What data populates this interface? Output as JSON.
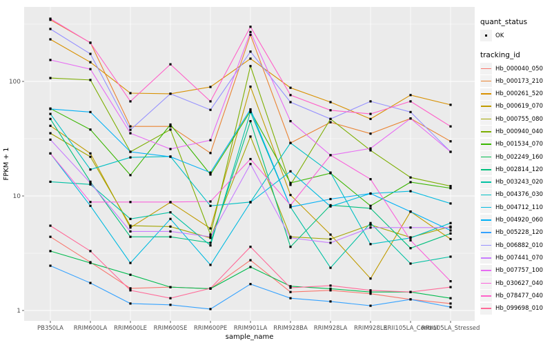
{
  "axes": {
    "x_title": "sample_name",
    "y_title": "FPKM + 1",
    "y_tick_labels": [
      "100",
      "10",
      "1"
    ],
    "y_tick_values": [
      100,
      10,
      1
    ],
    "y_minor_values": [
      316.2,
      31.62,
      3.162
    ]
  },
  "legend": {
    "quant_status_title": "quant_status",
    "quant_status_items": [
      {
        "label": "OK"
      }
    ],
    "tracking_title": "tracking_id"
  },
  "colors": {
    "panel_background": "#EBEBEB",
    "gridline": "#FFFFFF",
    "point": "#000000",
    "tick": "#333333",
    "tick_text": "#4D4D4D",
    "legend_key_background": "#F2F2F2"
  },
  "chart_data": {
    "type": "line",
    "yscale": "log10",
    "ylim": [
      0.81,
      450
    ],
    "grid": "on",
    "legend_position": "right",
    "xlabel": "sample_name",
    "ylabel": "FPKM + 1",
    "categories": [
      "PB350LA",
      "RRIM600LA",
      "RRIM600LE",
      "RRIM600SE",
      "RRIM600PE",
      "RRIM901LA",
      "RRIM928BA",
      "RRIM928LA",
      "RRIM928LE",
      "RRII105LA_Control",
      "RRII105LA_Stressed"
    ],
    "series": [
      {
        "name": "Hb_000040_050",
        "color": "#F8766D",
        "values": [
          4.4,
          2.64,
          1.56,
          1.6,
          1.55,
          2.75,
          1.45,
          1.5,
          1.4,
          1.25,
          1.15
        ]
      },
      {
        "name": "Hb_000173_210",
        "color": "#EA8331",
        "values": [
          345,
          218,
          40.5,
          40.5,
          23.7,
          255,
          29,
          44,
          35,
          47.5,
          30
        ]
      },
      {
        "name": "Hb_000261_520",
        "color": "#D89000",
        "values": [
          233,
          147,
          79,
          78,
          89.5,
          158,
          88,
          66,
          47,
          76,
          62.5
        ]
      },
      {
        "name": "Hb_000619_070",
        "color": "#C09B00",
        "values": [
          41,
          23.5,
          5.3,
          8.8,
          5.2,
          90,
          10.2,
          4.6,
          1.9,
          7.3,
          4.2
        ]
      },
      {
        "name": "Hb_000755_080",
        "color": "#A3A500",
        "values": [
          35.3,
          22,
          5.5,
          5.4,
          4.3,
          33,
          4.4,
          4.2,
          5.6,
          4.35,
          5.4
        ]
      },
      {
        "name": "Hb_000940_040",
        "color": "#7CAE00",
        "values": [
          107,
          103,
          24.3,
          38,
          4.6,
          136,
          12.5,
          47,
          25,
          14.5,
          12.2
        ]
      },
      {
        "name": "Hb_001534_070",
        "color": "#39B600",
        "values": [
          58,
          38,
          15.2,
          42,
          15.4,
          55,
          13,
          15.8,
          8.2,
          13.2,
          11.7
        ]
      },
      {
        "name": "Hb_002249_160",
        "color": "#00BB4E",
        "values": [
          3.3,
          2.6,
          2.05,
          1.6,
          1.55,
          2.4,
          1.63,
          1.55,
          1.45,
          1.45,
          1.28
        ]
      },
      {
        "name": "Hb_002814_120",
        "color": "#00BF7D",
        "values": [
          47,
          13.3,
          4.4,
          4.4,
          3.9,
          45,
          3.6,
          8.3,
          7.8,
          3.5,
          4.7
        ]
      },
      {
        "name": "Hb_003243_020",
        "color": "#00C1A3",
        "values": [
          13.3,
          12.6,
          6.3,
          7.2,
          3.7,
          54,
          8,
          2.36,
          5.8,
          2.57,
          2.95
        ]
      },
      {
        "name": "Hb_004376_030",
        "color": "#00BFC4",
        "values": [
          52,
          17,
          21.7,
          22.1,
          8.2,
          8.85,
          29,
          16,
          3.8,
          4.3,
          5.8
        ]
      },
      {
        "name": "Hb_004712_110",
        "color": "#00BAE0",
        "values": [
          23.5,
          8.2,
          2.6,
          6.3,
          2.5,
          8.8,
          16.4,
          8.1,
          10.5,
          11,
          8.6
        ]
      },
      {
        "name": "Hb_004920_060",
        "color": "#00B0F6",
        "values": [
          57.5,
          54,
          24.3,
          22,
          16,
          57,
          8,
          9.4,
          10.5,
          7.3,
          5.0
        ]
      },
      {
        "name": "Hb_005228_120",
        "color": "#35A2FF",
        "values": [
          2.46,
          1.74,
          1.15,
          1.12,
          1.03,
          1.7,
          1.28,
          1.2,
          1.1,
          1.25,
          1.07
        ]
      },
      {
        "name": "Hb_006882_010",
        "color": "#9590FF",
        "values": [
          287,
          174,
          37.8,
          78,
          56.5,
          182,
          66,
          47,
          67,
          54,
          24.3
        ]
      },
      {
        "name": "Hb_007441_070",
        "color": "#C77CFF",
        "values": [
          31,
          13,
          4.9,
          4.9,
          4.4,
          19,
          4.3,
          3.9,
          5.3,
          5.3,
          5.3
        ]
      },
      {
        "name": "Hb_007757_100",
        "color": "#E76BF3",
        "values": [
          154,
          128,
          35.3,
          25.7,
          30.7,
          270,
          45,
          22.7,
          26,
          47.5,
          24.3
        ]
      },
      {
        "name": "Hb_030627_040",
        "color": "#FA62DB",
        "values": [
          23.5,
          8.85,
          8.85,
          8.85,
          8.95,
          21,
          8.3,
          22.7,
          14,
          4.1,
          1.8
        ]
      },
      {
        "name": "Hb_078477_040",
        "color": "#FF61C9",
        "values": [
          353,
          217,
          67,
          141,
          67,
          300,
          76,
          56,
          52,
          67,
          40.5
        ]
      },
      {
        "name": "Hb_099698_010",
        "color": "#FF6A98",
        "values": [
          5.5,
          3.3,
          1.5,
          1.28,
          1.56,
          3.6,
          1.58,
          1.65,
          1.5,
          1.45,
          1.6
        ]
      }
    ]
  }
}
